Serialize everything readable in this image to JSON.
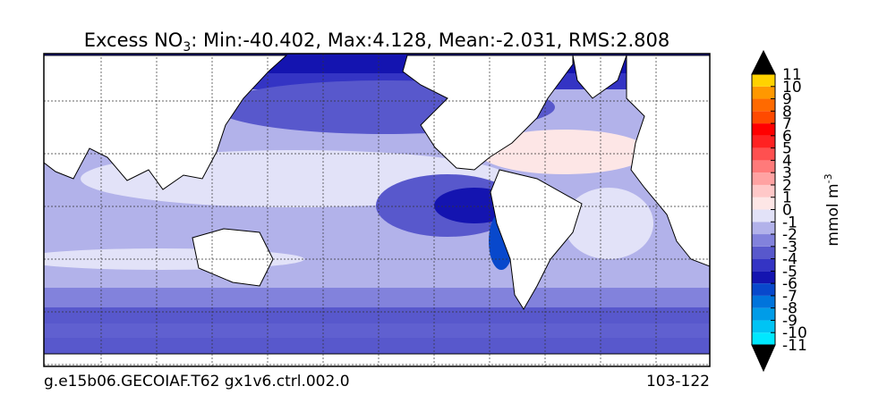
{
  "title": {
    "prefix": "Excess NO",
    "subscript": "3",
    "rest": ": Min:-40.402, Max:4.128, Mean:-2.031, RMS:2.808"
  },
  "footer": {
    "left": "g.e15b06.GECOIAF.T62 gx1v6.ctrl.002.0",
    "right": "103-122"
  },
  "colorbar": {
    "label": {
      "text": "mmol m",
      "superscript": "-3"
    },
    "levels": [
      -11,
      -10,
      -9,
      -8,
      -7,
      -6,
      -5,
      -4,
      -3,
      -2,
      -1,
      0,
      1,
      2,
      3,
      4,
      5,
      6,
      7,
      8,
      9,
      10,
      11
    ],
    "colors": [
      "#00e8ff",
      "#00c4f4",
      "#009ce8",
      "#0074dc",
      "#0848cc",
      "#1414b0",
      "#3434c4",
      "#5858cc",
      "#8282dc",
      "#b2b2ea",
      "#e2e2f8",
      "#fde6e6",
      "#ffc8c8",
      "#ffa2a2",
      "#ff7a7a",
      "#ff5050",
      "#ff2222",
      "#ff0000",
      "#ff4a00",
      "#ff6a00",
      "#ff9800",
      "#ffd200"
    ],
    "extend_color": "#000000"
  }
}
